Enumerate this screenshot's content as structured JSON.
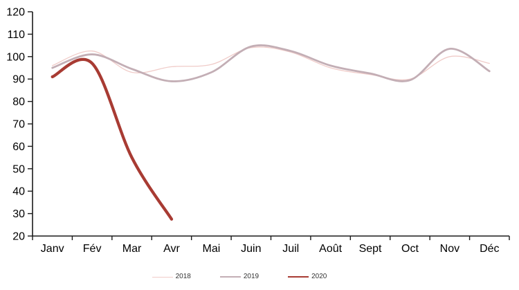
{
  "chart_data": {
    "type": "line",
    "categories": [
      "Janv",
      "Fév",
      "Mar",
      "Avr",
      "Mai",
      "Juin",
      "Juil",
      "Août",
      "Sept",
      "Oct",
      "Nov",
      "Déc"
    ],
    "series": [
      {
        "name": "2018",
        "color": "#F0CBC8",
        "stroke_width": 1.3,
        "values": [
          96,
          102.5,
          93,
          95.5,
          96.5,
          104,
          102,
          95,
          92,
          90,
          100,
          97
        ]
      },
      {
        "name": "2019",
        "color": "#C3AEB5",
        "stroke_width": 2.8,
        "values": [
          95,
          101,
          94.5,
          89,
          93,
          104.5,
          102.5,
          96,
          92.5,
          89.5,
          103.5,
          93.5
        ]
      },
      {
        "name": "2020",
        "color": "#A83B33",
        "stroke_width": 4.3,
        "values": [
          91,
          97,
          55,
          27.5
        ]
      }
    ],
    "ylim": [
      20,
      120
    ],
    "ytick_step": 10,
    "ytick_labels": [
      "20",
      "30",
      "40",
      "50",
      "60",
      "70",
      "80",
      "90",
      "100",
      "110",
      "120"
    ],
    "grid": false,
    "legend_position": "bottom",
    "axis_color": "#1a1a1a",
    "text_color": "#000000",
    "curve_style": "smooth"
  }
}
